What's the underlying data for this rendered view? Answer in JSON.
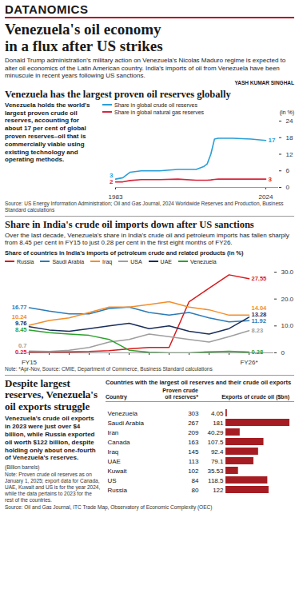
{
  "page": {
    "masthead": "DATANOMICS",
    "title": "Venezuela's oil economy in a flux after US strikes",
    "intro": "Donald Trump administration's military action on Venezuela's Nicolas Maduro regime is expected to alter oil economics of the Latin American country. India's imports of oil from Venezuela have been minuscule in recent years following US sanctions.",
    "byline": "YASH KUMAR SINGHAL"
  },
  "chart_data": [
    {
      "type": "line",
      "heading": "Venezuela has the largest proven oil reserves globally",
      "text": "Venezuela holds the world's largest proven crude oil reserves, accounting for about 17 per cent of global proven reserves–oil that is commercially viable using existing technology and operating methods.",
      "source": "Source: US Energy Information Administration; Oil and Gas Journal, 2024 Worldwide Reserves and Production, Business Standard calculations",
      "ylabel": "(in %)",
      "x": [
        1983,
        1985,
        1987,
        1990,
        1995,
        2000,
        2005,
        2007,
        2008,
        2009,
        2010,
        2011,
        2015,
        2020,
        2024
      ],
      "xlim": [
        1983,
        2024
      ],
      "xticks": [
        1983,
        2024
      ],
      "ylim": [
        0,
        24
      ],
      "yticks": [
        0,
        6,
        12,
        18,
        24
      ],
      "grid": false,
      "series": [
        {
          "name": "Share in global crude oil reserves",
          "color": "#2a9fd6",
          "values": [
            3,
            3.5,
            5.5,
            6,
            6,
            6.5,
            6.5,
            7.5,
            8.5,
            12,
            17.5,
            17.8,
            17.8,
            17.5,
            17
          ]
        },
        {
          "name": "Share in global natural gas reserves",
          "color": "#d7263d",
          "values": [
            2,
            2,
            2.5,
            2.8,
            2.8,
            3,
            2.6,
            2.6,
            2.6,
            2.7,
            2.9,
            3,
            3,
            3,
            3
          ]
        }
      ]
    },
    {
      "type": "line",
      "heading": "Share in India's crude oil imports down after US sanctions",
      "text": "Over the last decade, Venezuela's share in India's crude oil and petroleum imports has fallen sharply from 8.45 per cent in FY15 to just 0.28 per cent in the first eight months of FY26.",
      "title": "Share of countries in India's imports of petroleum crude and related products (in %)",
      "note": "Note: *Apr-Nov, Source: CMIE, Department of Commerce, Business Standard calculations",
      "categories": [
        "FY15",
        null,
        null,
        null,
        null,
        null,
        null,
        null,
        null,
        null,
        null,
        "FY26*"
      ],
      "ylim": [
        0,
        30
      ],
      "yticks": [
        0,
        {
          "value": 10,
          "label": "10.0"
        },
        {
          "value": 20,
          "label": "20.0"
        },
        {
          "value": 30,
          "label": "30.0"
        }
      ],
      "grid": false,
      "series": [
        {
          "name": "Russia",
          "color": "#d7191c",
          "values": [
            0.25,
            0.3,
            0.4,
            0.5,
            0.8,
            1.5,
            2,
            2,
            19,
            24,
            29,
            27.55
          ]
        },
        {
          "name": "Saudi Arabia",
          "color": "#2c7bb6",
          "values": [
            16.77,
            15.5,
            14.5,
            14.5,
            16.5,
            17,
            15,
            14,
            15,
            13,
            11.5,
            11.92
          ]
        },
        {
          "name": "Iraq",
          "color": "#f28e2b",
          "values": [
            10.24,
            12,
            13,
            15,
            17,
            17,
            18,
            19,
            17,
            16,
            14,
            14.04
          ]
        },
        {
          "name": "USA",
          "color": "#9e9e9e",
          "values": [
            0.7,
            0.5,
            1,
            2,
            4,
            5,
            7,
            6,
            5,
            4,
            6,
            8.23
          ]
        },
        {
          "name": "UAE",
          "color": "#1a2e5a",
          "values": [
            9.76,
            8.5,
            8,
            9,
            10,
            11,
            9,
            10,
            8,
            7,
            9,
            13.28
          ]
        },
        {
          "name": "Venezuela",
          "color": "#2ca02c",
          "values": [
            8.45,
            7.5,
            7,
            6.5,
            5,
            1,
            0.2,
            0,
            0,
            0.4,
            0.6,
            0.28
          ]
        }
      ]
    },
    {
      "type": "bar",
      "orientation": "horizontal",
      "heading": "Despite largest reserves, Venezuela's oil exports struggle",
      "text": "Venezuela's crude oil exports in 2023 were just over $4 billion, while Russia exported oil worth $122 billion, despite holding only about one-fourth of Venezuela's reserves.",
      "unit_note": "(Billion barrels)",
      "note": "Note: Proven crude oil reserves as on January 1, 2025; export data for Canada, UAE, Kuwait and US is for the year 2024, while the data pertains to 2023 for the rest of the countries.",
      "title": "Countries with the largest oil reserves and their crude oil exports",
      "column_heads": [
        "Country",
        "Proven crude oil reserves*",
        "Exports of crude oil ($bn)"
      ],
      "source": "Source: Oil and Gas Journal, ITC Trade Map, Observatory of Economic Complexity (OEC)",
      "categories": [
        "Venezuela",
        "Saudi Arabia",
        "Iran",
        "Canada",
        "Iraq",
        "UAE",
        "Kuwait",
        "US",
        "Russia"
      ],
      "reserves": [
        303,
        267,
        209,
        163,
        145,
        113,
        102,
        84,
        80
      ],
      "values": [
        4.05,
        181,
        40.29,
        107.5,
        92.4,
        79.1,
        35.53,
        118.5,
        122
      ],
      "xlim": [
        0,
        181
      ],
      "color": "#a51d22",
      "data_labels": true,
      "tick_labels": "y"
    }
  ]
}
